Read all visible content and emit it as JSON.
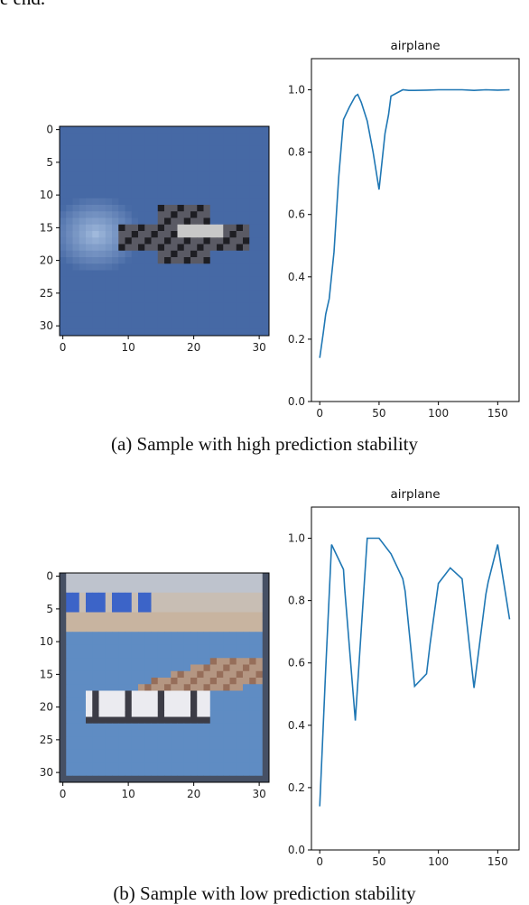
{
  "page": {
    "fragment": "e end.",
    "caption_a": "(a) Sample with high prediction stability",
    "caption_b": "(b) Sample with low prediction stability"
  },
  "colors": {
    "line": "#1f77b4",
    "axis": "#000000",
    "sky": "#4a6ba6",
    "background": "#ffffff"
  },
  "images": [
    {
      "content": "low-resolution photo of an airplane in a blue sky",
      "xticks": [
        "0",
        "10",
        "20",
        "30"
      ],
      "yticks": [
        "0",
        "5",
        "10",
        "15",
        "20",
        "25",
        "30"
      ]
    },
    {
      "content": "low-resolution photo of a white airplane above water with a pier",
      "xticks": [
        "0",
        "10",
        "20",
        "30"
      ],
      "yticks": [
        "0",
        "5",
        "10",
        "15",
        "20",
        "25",
        "30"
      ]
    }
  ],
  "chart_data": [
    {
      "type": "line",
      "title": "airplane",
      "xlabel": "",
      "ylabel": "",
      "xlim": [
        -7,
        168
      ],
      "ylim": [
        0.0,
        1.1
      ],
      "xticks": [
        0,
        50,
        100,
        150
      ],
      "yticks": [
        0.0,
        0.2,
        0.4,
        0.6,
        0.8,
        1.0
      ],
      "grid": false,
      "series": [
        {
          "x": [
            0,
            3,
            5,
            8,
            12,
            16,
            20,
            25,
            30,
            32,
            35,
            40,
            45,
            50,
            55,
            58,
            60,
            70,
            75,
            80,
            90,
            100,
            110,
            120,
            130,
            140,
            150,
            160
          ],
          "values": [
            0.14,
            0.22,
            0.28,
            0.33,
            0.48,
            0.72,
            0.905,
            0.945,
            0.98,
            0.985,
            0.96,
            0.9,
            0.8,
            0.68,
            0.86,
            0.92,
            0.98,
            1.0,
            0.998,
            0.998,
            0.999,
            1.0,
            1.0,
            1.0,
            0.998,
            1.0,
            0.999,
            1.0
          ]
        }
      ]
    },
    {
      "type": "line",
      "title": "airplane",
      "xlabel": "",
      "ylabel": "",
      "xlim": [
        -7,
        168
      ],
      "ylim": [
        0.0,
        1.1
      ],
      "xticks": [
        0,
        50,
        100,
        150
      ],
      "yticks": [
        0.0,
        0.2,
        0.4,
        0.6,
        0.8,
        1.0
      ],
      "grid": false,
      "series": [
        {
          "x": [
            0,
            5,
            10,
            20,
            21,
            30,
            40,
            50,
            60,
            70,
            72,
            80,
            90,
            93,
            100,
            110,
            120,
            130,
            140,
            142,
            150,
            160
          ],
          "values": [
            0.14,
            0.58,
            0.98,
            0.9,
            0.84,
            0.415,
            1.0,
            1.0,
            0.95,
            0.87,
            0.83,
            0.525,
            0.565,
            0.66,
            0.855,
            0.905,
            0.87,
            0.52,
            0.82,
            0.86,
            0.98,
            0.74
          ]
        }
      ]
    }
  ]
}
